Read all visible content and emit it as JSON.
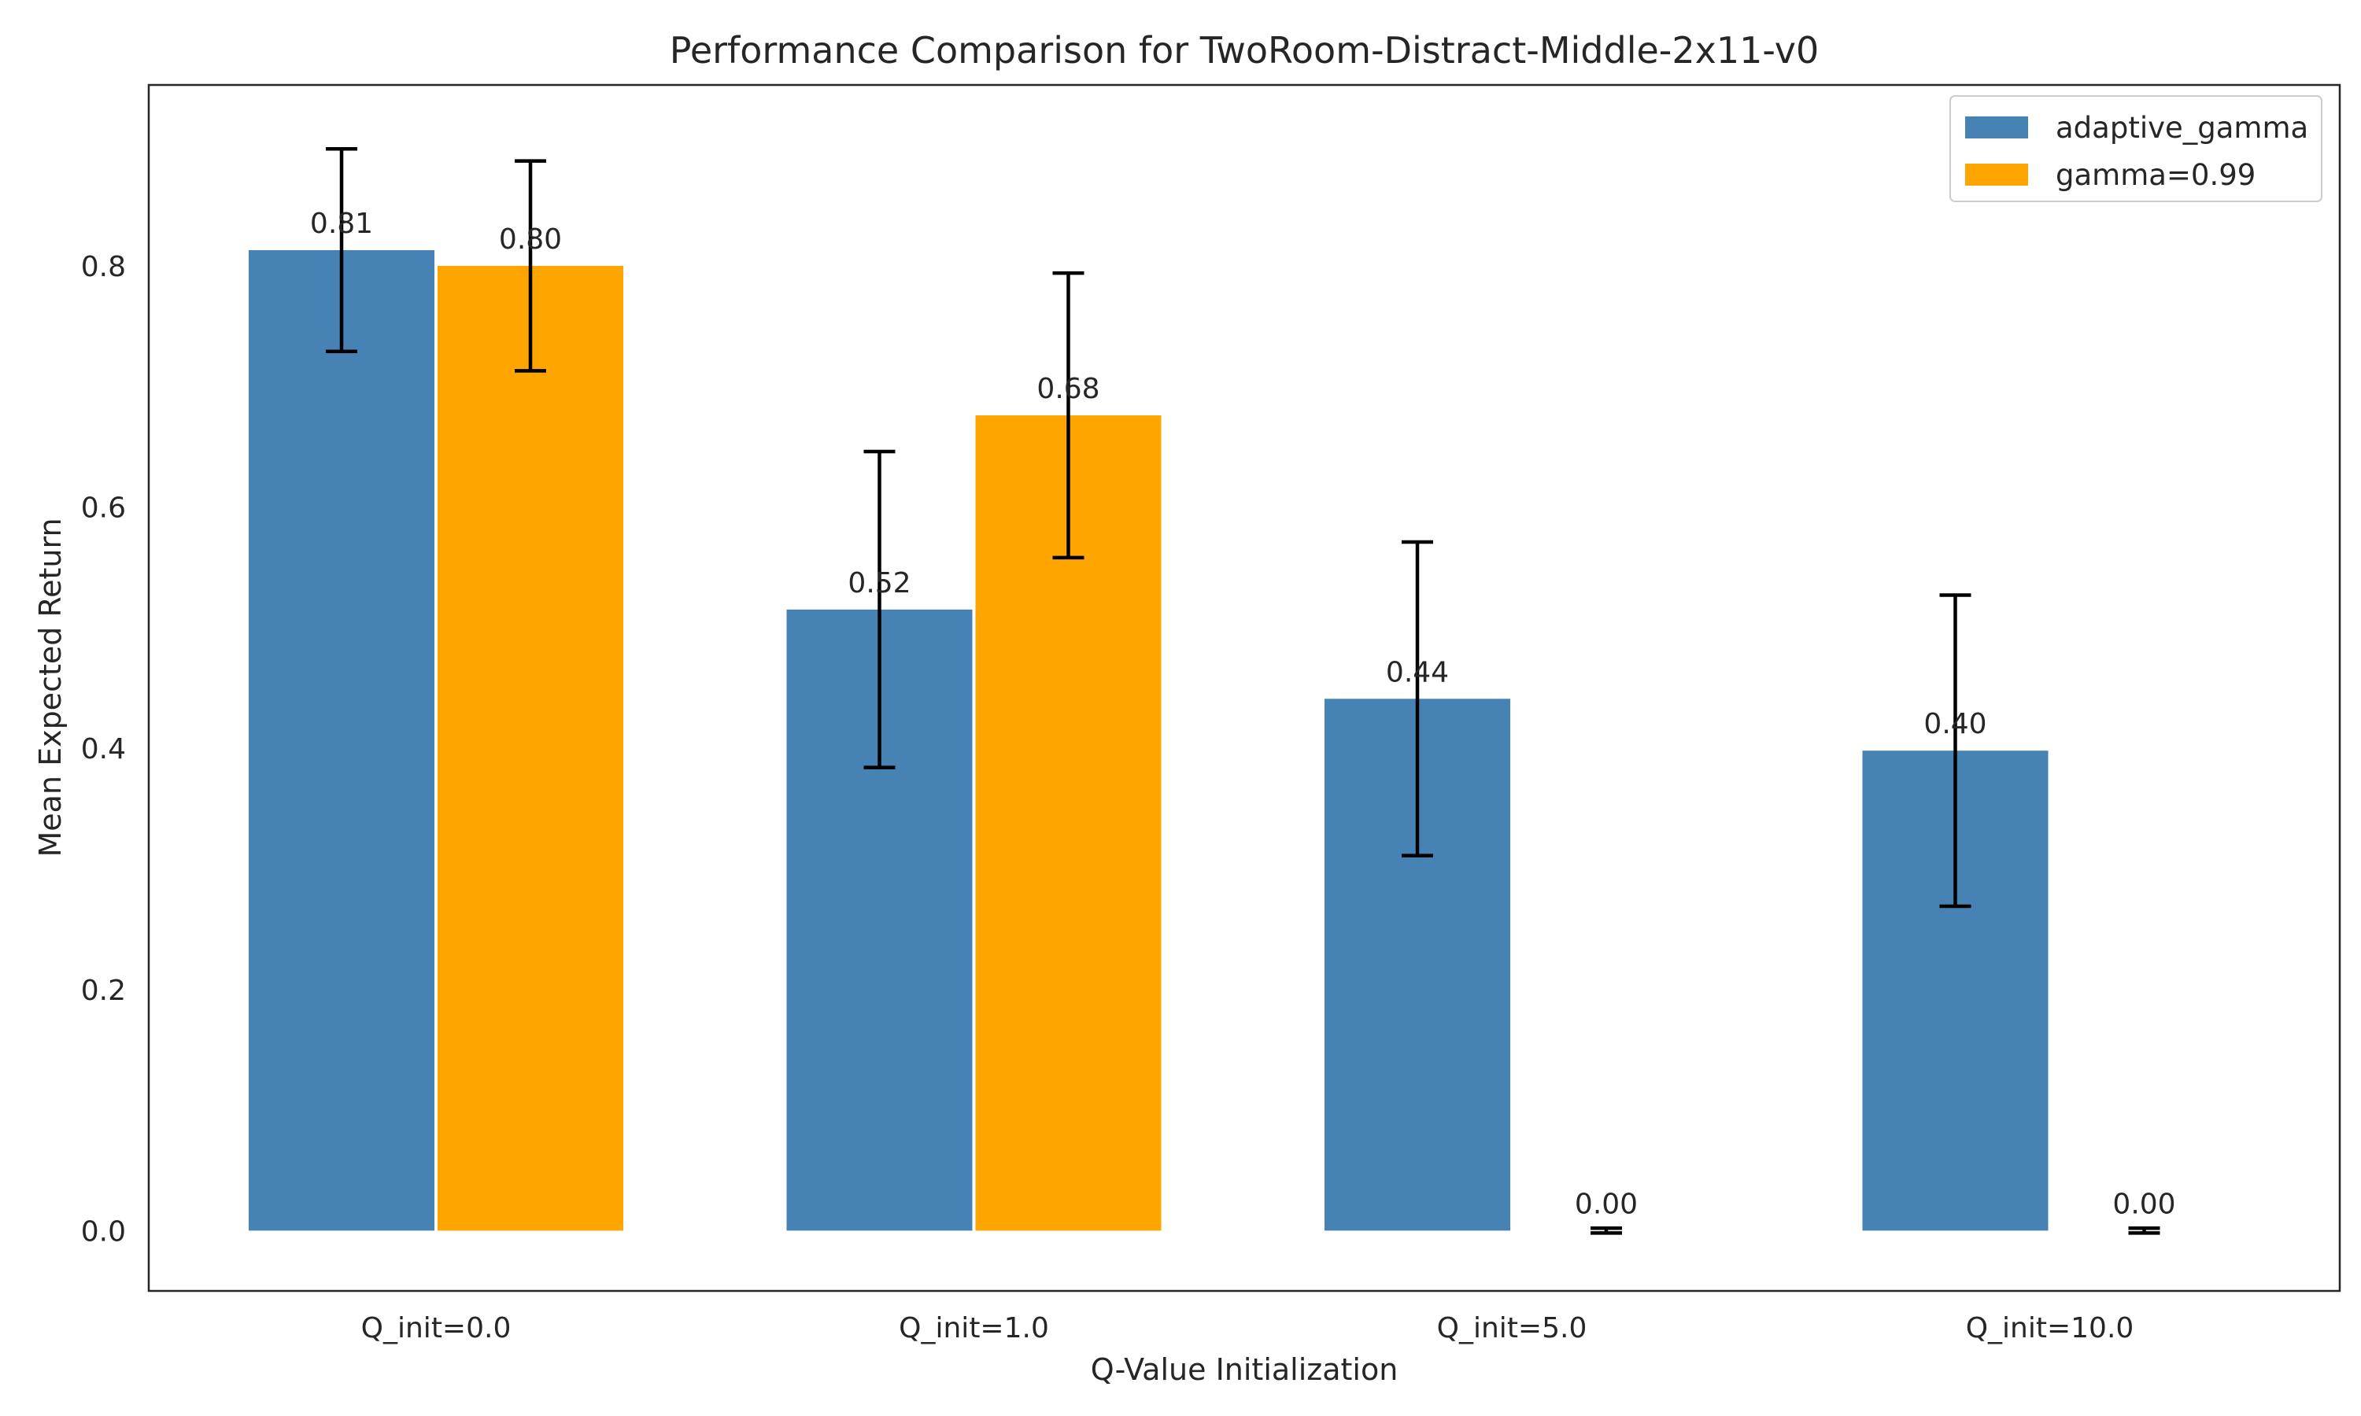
{
  "chart_data": {
    "type": "bar",
    "title": "Performance Comparison for TwoRoom-Distract-Middle-2x11-v0",
    "xlabel": "Q-Value Initialization",
    "ylabel": "Mean Expected Return",
    "categories": [
      "Q_init=0.0",
      "Q_init=1.0",
      "Q_init=5.0",
      "Q_init=10.0"
    ],
    "series": [
      {
        "name": "adaptive_gamma",
        "color": "#4682b4",
        "values": [
          0.813,
          0.515,
          0.441,
          0.398
        ],
        "errors": [
          0.084,
          0.131,
          0.13,
          0.129
        ],
        "value_labels": [
          "0.81",
          "0.52",
          "0.44",
          "0.40"
        ]
      },
      {
        "name": "gamma=0.99",
        "color": "#ffa500",
        "values": [
          0.8,
          0.676,
          0.0,
          0.0
        ],
        "errors": [
          0.087,
          0.118,
          0.002,
          0.002
        ],
        "value_labels": [
          "0.80",
          "0.68",
          "0.00",
          "0.00"
        ]
      }
    ],
    "ylim": [
      -0.05,
      0.95
    ],
    "yticks": [
      0.0,
      0.2,
      0.4,
      0.6,
      0.8
    ],
    "ytick_labels": [
      "0.0",
      "0.2",
      "0.4",
      "0.6",
      "0.8"
    ],
    "grid": false,
    "legend_position": "top-right"
  }
}
